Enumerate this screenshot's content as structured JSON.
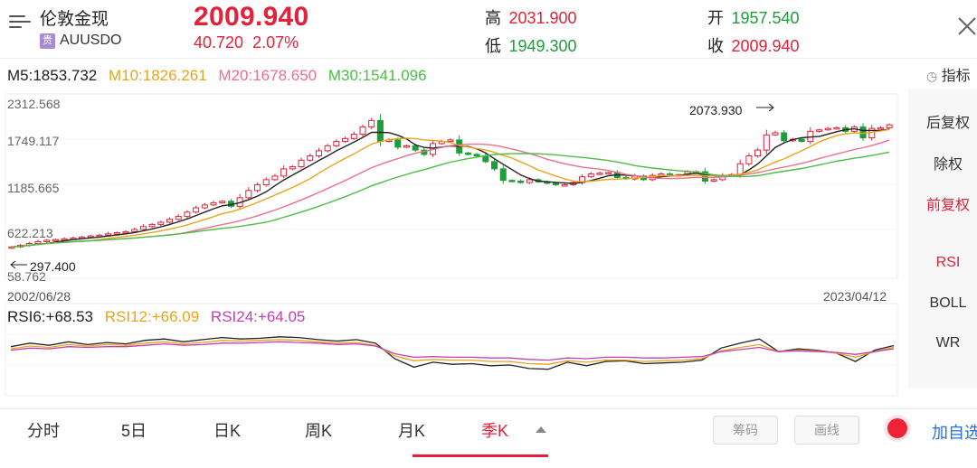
{
  "header": {
    "name": "伦敦金现",
    "badge": "贵",
    "code": "AUUSDO",
    "price": "2009.940",
    "change": "40.720",
    "change_pct": "2.07%",
    "high_label": "高",
    "high": "2031.900",
    "low_label": "低",
    "low": "1949.300",
    "open_label": "开",
    "open": "1957.540",
    "close_label": "收",
    "close": "2009.940"
  },
  "ma_legend": {
    "m5": "M5:1853.732",
    "m10": "M10:1826.261",
    "m20": "M20:1678.650",
    "m30": "M30:1541.096"
  },
  "indicator_button": "指标",
  "price_axis": [
    "2312.568",
    "1749.117",
    "1185.665",
    "622.213",
    "58.762"
  ],
  "annotations": {
    "max": "2073.930",
    "min": "297.400"
  },
  "dates": {
    "start": "2002/06/28",
    "end": "2023/04/12"
  },
  "rsi_legend": {
    "rsi6": "RSI6:+68.53",
    "rsi12": "RSI12:+66.09",
    "rsi24": "RSI24:+64.05"
  },
  "side_panel": {
    "items": [
      "后复权",
      "除权",
      "前复权",
      "RSI",
      "BOLL",
      "WR"
    ],
    "active": [
      "前复权",
      "RSI"
    ]
  },
  "tabs": [
    "分时",
    "5日",
    "日K",
    "周K",
    "月K",
    "季K"
  ],
  "active_tab": "季K",
  "tools": {
    "chips": "筹码",
    "draw": "画线"
  },
  "add_watch": "加自选",
  "colors": {
    "up": "#e1223a",
    "down": "#1f9d3a",
    "ma5": "#222222",
    "ma10": "#e8a51b",
    "ma20": "#ef6f8c",
    "ma30": "#4dbd45"
  },
  "chart_data": [
    {
      "type": "candlestick",
      "period": "quarterly",
      "x_range": [
        "2002/06/28",
        "2023/04/12"
      ],
      "ylim": [
        58.762,
        2312.568
      ],
      "y_ticks": [
        2312.568,
        1749.117,
        1185.665,
        622.213,
        58.762
      ],
      "closes": [
        318,
        340,
        365,
        390,
        410,
        420,
        430,
        440,
        455,
        470,
        480,
        500,
        515,
        530,
        560,
        600,
        630,
        660,
        700,
        740,
        800,
        860,
        900,
        930,
        950,
        880,
        1000,
        1100,
        1180,
        1250,
        1300,
        1400,
        1430,
        1520,
        1580,
        1650,
        1720,
        1780,
        1820,
        1880,
        1980,
        2070,
        1780,
        1800,
        1700,
        1720,
        1660,
        1600,
        1750,
        1780,
        1800,
        1620,
        1600,
        1580,
        1500,
        1400,
        1240,
        1230,
        1210,
        1250,
        1220,
        1200,
        1180,
        1180,
        1210,
        1290,
        1330,
        1340,
        1350,
        1280,
        1260,
        1300,
        1250,
        1310,
        1330,
        1320,
        1320,
        1360,
        1360,
        1230,
        1250,
        1310,
        1320,
        1470,
        1580,
        1660,
        1870,
        1900,
        1790,
        1810,
        1780,
        1920,
        1940,
        1960,
        1970,
        1920,
        1980,
        1830,
        1960,
        1970,
        2010
      ],
      "annotations": [
        {
          "label": "2073.930",
          "value": 2073.93
        },
        {
          "label": "297.400",
          "value": 297.4
        }
      ],
      "series": [
        {
          "name": "M5",
          "value": 1853.732
        },
        {
          "name": "M10",
          "value": 1826.261
        },
        {
          "name": "M20",
          "value": 1678.65
        },
        {
          "name": "M30",
          "value": 1541.096
        }
      ]
    },
    {
      "type": "line",
      "ylim": [
        0,
        100
      ],
      "series": [
        {
          "name": "RSI6",
          "values": [
            67,
            72,
            69,
            74,
            70,
            73,
            71,
            76,
            78,
            74,
            77,
            80,
            78,
            79,
            81,
            80,
            77,
            75,
            77,
            72,
            50,
            38,
            45,
            42,
            43,
            40,
            41,
            36,
            35,
            45,
            40,
            46,
            47,
            43,
            44,
            45,
            48,
            65,
            72,
            78,
            60,
            64,
            62,
            58,
            46,
            62,
            68.53
          ]
        },
        {
          "name": "RSI12",
          "values": [
            64,
            68,
            66,
            70,
            68,
            70,
            69,
            72,
            74,
            71,
            73,
            76,
            75,
            76,
            77,
            76,
            74,
            72,
            73,
            69,
            54,
            47,
            49,
            48,
            48,
            46,
            46,
            43,
            42,
            47,
            45,
            48,
            48,
            46,
            47,
            48,
            50,
            61,
            66,
            70,
            60,
            62,
            61,
            58,
            52,
            60,
            66.09
          ]
        },
        {
          "name": "RSI24",
          "values": [
            62,
            65,
            64,
            67,
            66,
            67,
            67,
            69,
            71,
            69,
            70,
            72,
            72,
            73,
            74,
            73,
            72,
            70,
            71,
            68,
            57,
            52,
            53,
            52,
            52,
            51,
            51,
            49,
            48,
            51,
            50,
            52,
            52,
            51,
            51,
            52,
            53,
            60,
            63,
            66,
            60,
            61,
            60,
            59,
            56,
            60,
            64.05
          ]
        }
      ]
    }
  ]
}
